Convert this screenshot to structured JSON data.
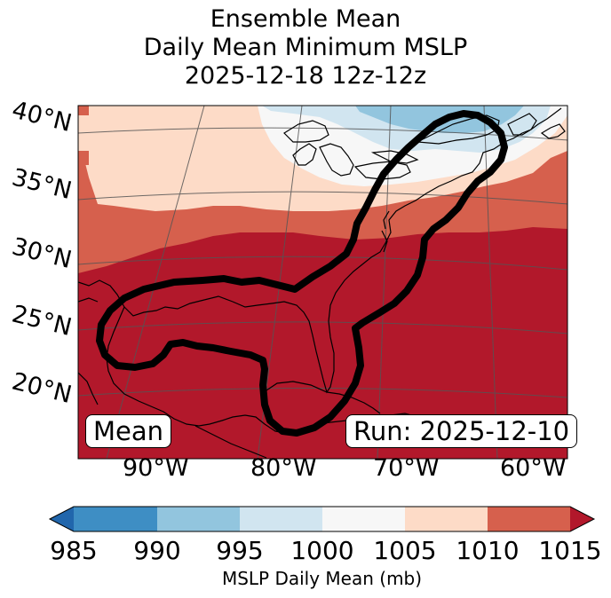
{
  "title": {
    "line1": "Ensemble Mean",
    "line2": "Daily Mean Minimum MSLP",
    "line3": "2025-12-18 12z-12z"
  },
  "map": {
    "latitude_labels": [
      "40°N",
      "35°N",
      "30°N",
      "25°N",
      "20°N"
    ],
    "longitude_labels": [
      "90°W",
      "80°W",
      "70°W",
      "60°W"
    ],
    "mean_box": "Mean",
    "run_box": "Run: 2025-12-10"
  },
  "colorbar": {
    "ticks": [
      "985",
      "990",
      "995",
      "1000",
      "1005",
      "1010",
      "1015"
    ],
    "label": "MSLP Daily Mean (mb)",
    "colors": [
      "#2166ac",
      "#3e8ec4",
      "#92c5de",
      "#d1e5f0",
      "#f7f7f7",
      "#fddbc7",
      "#d6604d",
      "#b2182b"
    ]
  }
}
